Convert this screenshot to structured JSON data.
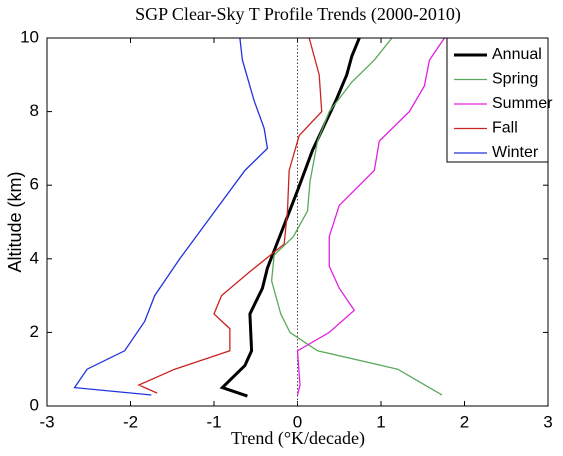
{
  "chart_data": {
    "type": "line",
    "title": "SGP Clear-Sky T Profile Trends (2000-2010)",
    "xlabel": "Trend (°K/decade)",
    "ylabel": "Altitude (km)",
    "xlim": [
      -3,
      3
    ],
    "ylim": [
      0,
      10
    ],
    "xticks": [
      -3,
      -2,
      -1,
      0,
      1,
      2,
      3
    ],
    "yticks": [
      0,
      2,
      4,
      6,
      8,
      10
    ],
    "legend": "upper right",
    "series": [
      {
        "name": "Annual",
        "color": "#000000",
        "x": [
          -0.6,
          -0.9,
          -0.63,
          -0.55,
          -0.57,
          -0.42,
          -0.36,
          -0.18,
          0,
          0.18,
          0.46,
          0.59,
          0.65,
          0.74
        ],
        "y": [
          0.27,
          0.5,
          1.1,
          1.5,
          2.5,
          3.2,
          3.75,
          4.8,
          5.85,
          6.95,
          8.3,
          9.0,
          9.5,
          10
        ]
      },
      {
        "name": "Spring",
        "color": "#5aa95a",
        "x": [
          1.73,
          1.2,
          0.24,
          -0.09,
          -0.2,
          -0.31,
          -0.28,
          -0.05,
          0.12,
          0.15,
          0.24,
          0.38,
          0.65,
          0.92,
          1.13
        ],
        "y": [
          0.3,
          1.0,
          1.5,
          2.0,
          2.5,
          3.4,
          4.1,
          4.6,
          5.3,
          6.1,
          7.2,
          8.0,
          8.8,
          9.4,
          10
        ]
      },
      {
        "name": "Summer",
        "color": "#e020e0",
        "x": [
          0,
          0.03,
          0.0,
          0.38,
          0.68,
          0.5,
          0.38,
          0.38,
          0.5,
          0.92,
          0.98,
          1.34,
          1.52,
          1.58,
          1.76
        ],
        "y": [
          0.3,
          0.57,
          1.5,
          2.0,
          2.6,
          3.2,
          3.8,
          4.6,
          5.45,
          6.4,
          7.2,
          8.0,
          8.7,
          9.4,
          10
        ]
      },
      {
        "name": "Fall",
        "color": "#cc2222",
        "x": [
          -1.68,
          -1.9,
          -1.47,
          -0.81,
          -0.81,
          -1.0,
          -0.91,
          -0.57,
          -0.16,
          -0.12,
          -0.1,
          0.02,
          0.29,
          0.26,
          0.14
        ],
        "y": [
          0.35,
          0.57,
          1.0,
          1.5,
          2.1,
          2.5,
          3.0,
          3.65,
          4.4,
          5.3,
          6.4,
          7.35,
          8.0,
          9.0,
          10
        ]
      },
      {
        "name": "Winter",
        "color": "#2233dd",
        "x": [
          -1.75,
          -2.67,
          -2.52,
          -2.07,
          -1.83,
          -1.71,
          -1.41,
          -1.02,
          -0.63,
          -0.36,
          -0.4,
          -0.52,
          -0.66,
          -0.69
        ],
        "y": [
          0.3,
          0.5,
          1.0,
          1.5,
          2.3,
          3.0,
          4.0,
          5.2,
          6.4,
          7.0,
          7.55,
          8.3,
          9.4,
          10
        ]
      }
    ]
  }
}
